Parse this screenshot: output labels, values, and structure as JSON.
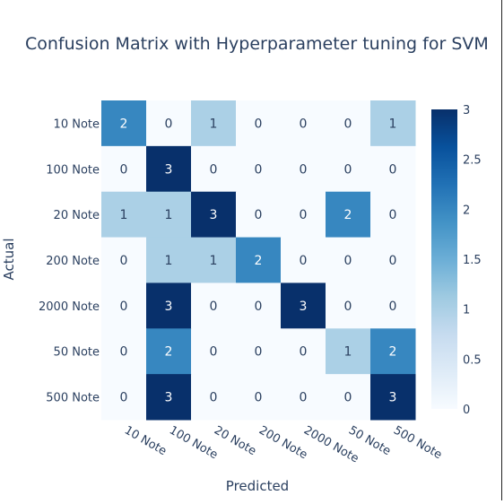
{
  "chart_data": {
    "type": "heatmap",
    "title": "Confusion Matrix with Hyperparameter tuning for SVM",
    "xlabel": "Predicted",
    "ylabel": "Actual",
    "x": [
      "10 Note",
      "100 Note",
      "20 Note",
      "200 Note",
      "2000 Note",
      "50 Note",
      "500 Note"
    ],
    "y": [
      "10 Note",
      "100 Note",
      "20 Note",
      "200 Note",
      "2000 Note",
      "50 Note",
      "500 Note"
    ],
    "z": [
      [
        2,
        0,
        1,
        0,
        0,
        0,
        1
      ],
      [
        0,
        3,
        0,
        0,
        0,
        0,
        0
      ],
      [
        1,
        1,
        3,
        0,
        0,
        2,
        0
      ],
      [
        0,
        1,
        1,
        2,
        0,
        0,
        0
      ],
      [
        0,
        3,
        0,
        0,
        3,
        0,
        0
      ],
      [
        0,
        2,
        0,
        0,
        0,
        1,
        2
      ],
      [
        0,
        3,
        0,
        0,
        0,
        0,
        3
      ]
    ],
    "zrange": [
      0,
      3
    ],
    "colorscale": "Blues",
    "colorbar_ticks": [
      "0",
      "0.5",
      "1",
      "1.5",
      "2",
      "2.5",
      "3"
    ],
    "colors": [
      "#f7fbff",
      "#deebf7",
      "#c6dbef",
      "#9ecae1",
      "#6baed6",
      "#4292c6",
      "#2171b5",
      "#08519c",
      "#08306b"
    ]
  }
}
